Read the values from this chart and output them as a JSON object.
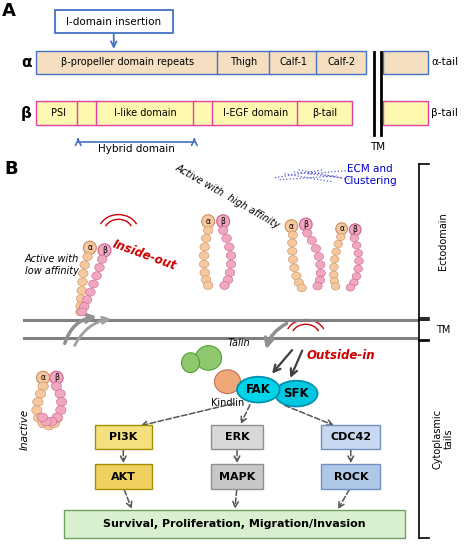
{
  "fig_width": 4.74,
  "fig_height": 5.5,
  "dpi": 100,
  "bg_color": "#ffffff",
  "panel_A": {
    "alpha_label": "α",
    "beta_label": "β",
    "alpha_tail_text": "α-tail",
    "beta_tail_text": "β-tail",
    "i_domain_text": "I-domain insertion",
    "hybrid_text": "Hybrid domain",
    "tm_text": "TM",
    "alpha_fill": "#f5dfc0",
    "alpha_edge": "#4472c4",
    "beta_fill": "#fff8b0",
    "beta_edge": "#e040a0",
    "arrow_color": "#4472c4"
  },
  "panel_B": {
    "fak_fill": "#00d4e8",
    "sfk_fill": "#00c8e0",
    "pi3k_fill": "#f5e080",
    "akt_fill": "#f0d060",
    "erk_fill": "#d8d8d8",
    "mapk_fill": "#c8c8c8",
    "cdc42_fill": "#c8d8f0",
    "rock_fill": "#b0c8e8",
    "survival_fill": "#d8f0d0",
    "alpha_head_fill": "#f5c8a0",
    "beta_head_fill": "#f0a8c0",
    "alpha_bead_fill": "#f5c8a0",
    "beta_bead_fill": "#f0a8c0",
    "talin_fill": "#90c870",
    "kindlin_fill": "#f0a878",
    "survival_label": "Survival, Proliferation, Migration/Invasion",
    "ecm_color": "#0000cc",
    "inside_out_color": "#cc0000",
    "outside_in_color": "#cc0000"
  }
}
